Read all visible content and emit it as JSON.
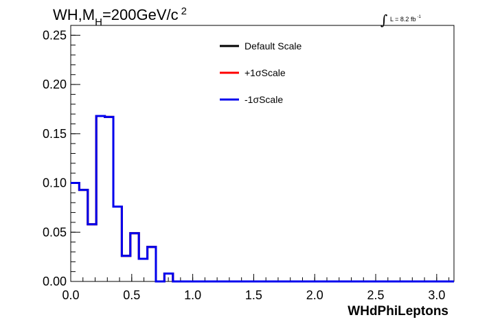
{
  "chart_data": {
    "type": "line",
    "style": "step-histogram",
    "title": {
      "prefix": "WH,M",
      "subscript": "H",
      "suffix": "=200GeV/c",
      "superscript": "2"
    },
    "luminosity": {
      "integral_symbol": "∫",
      "text": "L = 8.2 fb",
      "superscript": "-1"
    },
    "xlabel": "WHdPhiLeptons",
    "ylabel": "",
    "xlim": [
      0,
      3.1416
    ],
    "ylim": [
      0,
      0.26
    ],
    "x_ticks": [
      "0.0",
      "0.5",
      "1.0",
      "1.5",
      "2.0",
      "2.5",
      "3.0"
    ],
    "x_tick_values": [
      0,
      0.5,
      1.0,
      1.5,
      2.0,
      2.5,
      3.0
    ],
    "y_ticks": [
      "0.00",
      "0.05",
      "0.10",
      "0.15",
      "0.20",
      "0.25"
    ],
    "y_tick_values": [
      0,
      0.05,
      0.1,
      0.15,
      0.2,
      0.25
    ],
    "grid": false,
    "legend_position": "top-center",
    "bin_edges": [
      0.0,
      0.0698,
      0.1396,
      0.2094,
      0.2793,
      0.3491,
      0.4189,
      0.4887,
      0.5585,
      0.6283,
      0.6981,
      0.7679,
      0.8378,
      0.9076,
      0.9774,
      1.0472,
      1.117,
      1.1868,
      1.2566,
      1.3265,
      1.3963,
      1.4661,
      1.5359,
      1.6057,
      1.6755,
      1.7453,
      1.8151,
      1.885,
      1.9548,
      2.0246,
      2.0944,
      2.1642,
      2.234,
      2.3038,
      2.3736,
      2.4435,
      2.5133,
      2.5831,
      2.6529,
      2.7227,
      2.7925,
      2.8623,
      2.9322,
      3.002,
      3.0718,
      3.1416
    ],
    "series": [
      {
        "name": "Default Scale",
        "color": "#000000",
        "values": [
          0.1,
          0.093,
          0.058,
          0.168,
          0.167,
          0.076,
          0.026,
          0.049,
          0.023,
          0.035,
          0.0,
          0.008,
          0.0,
          0.0,
          0.0,
          0.0,
          0.0,
          0.0,
          0.0,
          0.0,
          0.0,
          0.0,
          0.0,
          0.0,
          0.0,
          0.0,
          0.0,
          0.0,
          0.0,
          0.0,
          0.0,
          0.0,
          0.0,
          0.0,
          0.0,
          0.0,
          0.0,
          0.0,
          0.0,
          0.0,
          0.0,
          0.0,
          0.0,
          0.0,
          0.0
        ]
      },
      {
        "name": "+1σScale",
        "color": "#ff0000",
        "values": [
          0.1,
          0.093,
          0.058,
          0.168,
          0.167,
          0.076,
          0.026,
          0.049,
          0.023,
          0.035,
          0.0,
          0.008,
          0.0,
          0.0,
          0.0,
          0.0,
          0.0,
          0.0,
          0.0,
          0.0,
          0.0,
          0.0,
          0.0,
          0.0,
          0.0,
          0.0,
          0.0,
          0.0,
          0.0,
          0.0,
          0.0,
          0.0,
          0.0,
          0.0,
          0.0,
          0.0,
          0.0,
          0.0,
          0.0,
          0.0,
          0.0,
          0.0,
          0.0,
          0.0,
          0.0
        ]
      },
      {
        "name": "-1σScale",
        "color": "#0000ee",
        "values": [
          0.1,
          0.093,
          0.058,
          0.168,
          0.167,
          0.076,
          0.026,
          0.049,
          0.023,
          0.035,
          0.0,
          0.008,
          0.0,
          0.0,
          0.0,
          0.0,
          0.0,
          0.0,
          0.0,
          0.0,
          0.0,
          0.0,
          0.0,
          0.0,
          0.0,
          0.0,
          0.0,
          0.0,
          0.0,
          0.0,
          0.0,
          0.0,
          0.0,
          0.0,
          0.0,
          0.0,
          0.0,
          0.0,
          0.0,
          0.0,
          0.0,
          0.0,
          0.0,
          0.0,
          0.0
        ]
      }
    ]
  }
}
